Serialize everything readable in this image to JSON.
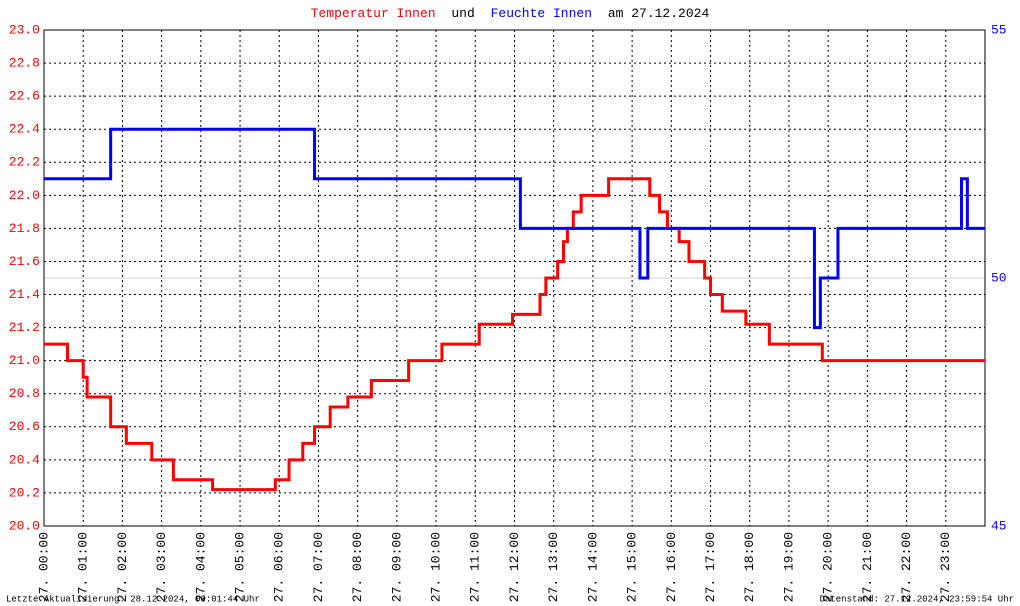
{
  "chart_data": {
    "type": "line",
    "title_parts": [
      "und",
      "am 27.12.2024"
    ],
    "footer_left": "Letzte Aktualisierung: 28.12.2024, 00:01:44 Uhr",
    "footer_right": "Datenstand: 27.12.2024, 23:59:54 Uhr",
    "grid": true,
    "xlim": [
      0,
      24
    ],
    "xticks": [
      {
        "value": 0,
        "label": "27. 00:00"
      },
      {
        "value": 1,
        "label": "27. 01:00"
      },
      {
        "value": 2,
        "label": "27. 02:00"
      },
      {
        "value": 3,
        "label": "27. 03:00"
      },
      {
        "value": 4,
        "label": "27. 04:00"
      },
      {
        "value": 5,
        "label": "27. 05:00"
      },
      {
        "value": 6,
        "label": "27. 06:00"
      },
      {
        "value": 7,
        "label": "27. 07:00"
      },
      {
        "value": 8,
        "label": "27. 08:00"
      },
      {
        "value": 9,
        "label": "27. 09:00"
      },
      {
        "value": 10,
        "label": "27. 10:00"
      },
      {
        "value": 11,
        "label": "27. 11:00"
      },
      {
        "value": 12,
        "label": "27. 12:00"
      },
      {
        "value": 13,
        "label": "27. 13:00"
      },
      {
        "value": 14,
        "label": "27. 14:00"
      },
      {
        "value": 15,
        "label": "27. 15:00"
      },
      {
        "value": 16,
        "label": "27. 16:00"
      },
      {
        "value": 17,
        "label": "27. 17:00"
      },
      {
        "value": 18,
        "label": "27. 18:00"
      },
      {
        "value": 19,
        "label": "27. 19:00"
      },
      {
        "value": 20,
        "label": "27. 20:00"
      },
      {
        "value": 21,
        "label": "27. 21:00"
      },
      {
        "value": 22,
        "label": "27. 22:00"
      },
      {
        "value": 23,
        "label": "27. 23:00"
      }
    ],
    "ylim": [
      20,
      23
    ],
    "yticks": [
      {
        "value": 20,
        "label": "20.0"
      },
      20.2,
      20.4,
      20.6,
      20.8,
      {
        "value": 21,
        "label": "21.0"
      },
      21.2,
      21.4,
      21.6,
      21.8,
      {
        "value": 22,
        "label": "22.0"
      },
      22.2,
      22.4,
      22.6,
      22.8,
      {
        "value": 23,
        "label": "23.0"
      }
    ],
    "y2lim": [
      45,
      55
    ],
    "y2ticks": [
      45,
      50,
      55
    ],
    "series": [
      {
        "name": "Temperatur Innen",
        "color": "#ff0000",
        "axis": "y",
        "x": [
          0,
          0.6,
          0.6,
          1.0,
          1.0,
          1.1,
          1.1,
          1.7,
          1.7,
          2.1,
          2.1,
          2.75,
          2.75,
          3.3,
          3.3,
          4.3,
          4.3,
          5.9,
          5.9,
          6.25,
          6.25,
          6.6,
          6.6,
          6.9,
          6.9,
          7.3,
          7.3,
          7.75,
          7.75,
          8.35,
          8.35,
          9.3,
          9.3,
          10.15,
          10.15,
          11.1,
          11.1,
          11.95,
          11.95,
          12.65,
          12.65,
          12.8,
          12.8,
          13.1,
          13.1,
          13.25,
          13.25,
          13.35,
          13.35,
          13.5,
          13.5,
          13.7,
          13.7,
          14.4,
          14.4,
          15.45,
          15.45,
          15.7,
          15.7,
          15.9,
          15.9,
          16.2,
          16.2,
          16.45,
          16.45,
          16.85,
          16.85,
          17.0,
          17.0,
          17.3,
          17.3,
          17.9,
          17.9,
          18.5,
          18.5,
          19.85,
          19.85,
          24
        ],
        "values": [
          21.1,
          21.1,
          21.0,
          21.0,
          20.9,
          20.9,
          20.78,
          20.78,
          20.6,
          20.6,
          20.5,
          20.5,
          20.4,
          20.4,
          20.28,
          20.28,
          20.22,
          20.22,
          20.28,
          20.28,
          20.4,
          20.4,
          20.5,
          20.5,
          20.6,
          20.6,
          20.72,
          20.72,
          20.78,
          20.78,
          20.88,
          20.88,
          21.0,
          21.0,
          21.1,
          21.1,
          21.22,
          21.22,
          21.28,
          21.28,
          21.4,
          21.4,
          21.5,
          21.5,
          21.6,
          21.6,
          21.72,
          21.72,
          21.8,
          21.8,
          21.9,
          21.9,
          22.0,
          22.0,
          22.1,
          22.1,
          22.0,
          22.0,
          21.9,
          21.9,
          21.8,
          21.8,
          21.72,
          21.72,
          21.6,
          21.6,
          21.5,
          21.5,
          21.4,
          21.4,
          21.3,
          21.3,
          21.22,
          21.22,
          21.1,
          21.1,
          21.0,
          21.0
        ]
      },
      {
        "name": "Feuchte Innen",
        "color": "#0000ff",
        "axis": "y2",
        "x": [
          0,
          1.7,
          1.7,
          6.9,
          6.9,
          12.15,
          12.15,
          15.2,
          15.2,
          15.4,
          15.4,
          19.65,
          19.65,
          19.8,
          19.8,
          20.25,
          20.25,
          23.4,
          23.4,
          23.55,
          23.55,
          24
        ],
        "values": [
          52,
          52,
          53,
          53,
          52,
          52,
          51,
          51,
          50,
          50,
          51,
          51,
          49,
          49,
          50,
          50,
          51,
          51,
          52,
          52,
          51,
          51
        ]
      }
    ]
  }
}
